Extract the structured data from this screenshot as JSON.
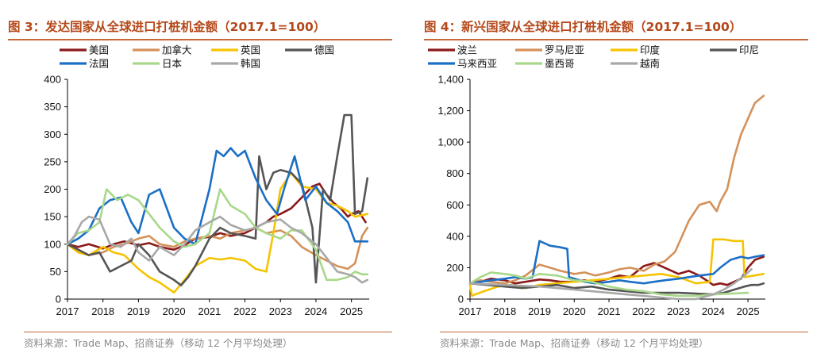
{
  "chart_data": [
    {
      "type": "line",
      "title": "图 3：发达国家从全球进口打桩机金额（2017.1=100）",
      "source": "资料来源：Trade Map、招商证券（移动 12 个月平均处理）",
      "y_ticks": [
        "0",
        "50",
        "100",
        "150",
        "200",
        "250",
        "300",
        "350",
        "400"
      ],
      "x_ticks": [
        "2017",
        "2018",
        "2019",
        "2020",
        "2021",
        "2022",
        "2023",
        "2024",
        "2025"
      ],
      "ylim": [
        0,
        400
      ],
      "xlim": [
        2017,
        2025.5
      ],
      "series": [
        {
          "name": "美国",
          "color": "#8b1a1a",
          "x": [
            2017,
            2017.3,
            2017.6,
            2018,
            2018.3,
            2018.6,
            2019,
            2019.3,
            2019.6,
            2020,
            2020.3,
            2020.6,
            2021,
            2021.3,
            2021.6,
            2022,
            2022.3,
            2022.6,
            2022.8,
            2023,
            2023.3,
            2023.6,
            2023.9,
            2024.1,
            2024.3,
            2024.5,
            2024.7,
            2024.9,
            2025,
            2025.2,
            2025.4
          ],
          "values": [
            100,
            95,
            100,
            92,
            100,
            105,
            98,
            102,
            95,
            90,
            98,
            110,
            113,
            120,
            115,
            120,
            130,
            140,
            150,
            155,
            165,
            185,
            205,
            210,
            190,
            175,
            165,
            150,
            155,
            160,
            140
          ]
        },
        {
          "name": "加拿大",
          "color": "#d4915a",
          "x": [
            2017,
            2017.3,
            2017.6,
            2018,
            2018.3,
            2018.6,
            2019,
            2019.3,
            2019.6,
            2020,
            2020.3,
            2020.6,
            2021,
            2021.3,
            2021.6,
            2022,
            2022.3,
            2022.6,
            2023,
            2023.3,
            2023.6,
            2024,
            2024.3,
            2024.6,
            2024.9,
            2025.1,
            2025.3,
            2025.45
          ],
          "values": [
            100,
            90,
            80,
            85,
            95,
            100,
            110,
            115,
            100,
            95,
            105,
            110,
            115,
            110,
            120,
            125,
            130,
            120,
            125,
            115,
            95,
            80,
            70,
            60,
            55,
            65,
            115,
            130
          ]
        },
        {
          "name": "英国",
          "color": "#f5c400",
          "x": [
            2017,
            2017.3,
            2017.6,
            2018,
            2018.3,
            2018.6,
            2019,
            2019.3,
            2019.6,
            2020,
            2020.3,
            2020.6,
            2021,
            2021.3,
            2021.6,
            2022,
            2022.3,
            2022.6,
            2022.8,
            2023,
            2023.3,
            2023.6,
            2024,
            2024.3,
            2024.6,
            2024.9,
            2025.1,
            2025.45
          ],
          "values": [
            100,
            85,
            80,
            95,
            85,
            80,
            55,
            40,
            30,
            12,
            35,
            60,
            75,
            72,
            75,
            70,
            55,
            50,
            120,
            200,
            230,
            205,
            200,
            175,
            170,
            160,
            150,
            155
          ]
        },
        {
          "name": "德国",
          "color": "#555555",
          "x": [
            2017,
            2017.3,
            2017.6,
            2017.9,
            2018.2,
            2018.5,
            2018.8,
            2019,
            2019.3,
            2019.6,
            2020,
            2020.2,
            2020.4,
            2020.6,
            2021,
            2021.3,
            2021.6,
            2022,
            2022.3,
            2022.4,
            2022.6,
            2022.8,
            2023,
            2023.3,
            2023.6,
            2023.9,
            2024,
            2024.2,
            2024.4,
            2024.6,
            2024.8,
            2025,
            2025.1,
            2025.3,
            2025.45
          ],
          "values": [
            100,
            90,
            80,
            85,
            50,
            60,
            70,
            100,
            80,
            50,
            35,
            25,
            40,
            60,
            110,
            130,
            120,
            115,
            110,
            260,
            200,
            230,
            235,
            230,
            210,
            130,
            30,
            200,
            180,
            260,
            335,
            335,
            155,
            160,
            220
          ]
        },
        {
          "name": "法国",
          "color": "#1b6fc6",
          "x": [
            2017,
            2017.3,
            2017.6,
            2017.9,
            2018.2,
            2018.5,
            2018.8,
            2019,
            2019.3,
            2019.6,
            2020,
            2020.3,
            2020.6,
            2021,
            2021.2,
            2021.4,
            2021.6,
            2021.8,
            2022,
            2022.3,
            2022.6,
            2022.9,
            2023.1,
            2023.4,
            2023.7,
            2024,
            2024.3,
            2024.6,
            2024.9,
            2025.1,
            2025.3,
            2025.45
          ],
          "values": [
            100,
            110,
            125,
            165,
            180,
            185,
            140,
            120,
            190,
            200,
            130,
            110,
            100,
            200,
            270,
            260,
            275,
            260,
            270,
            220,
            180,
            155,
            200,
            260,
            180,
            205,
            175,
            160,
            140,
            105,
            105,
            105
          ]
        },
        {
          "name": "日本",
          "color": "#a8d88a",
          "x": [
            2017,
            2017.3,
            2017.6,
            2017.9,
            2018.1,
            2018.4,
            2018.7,
            2019,
            2019.3,
            2019.6,
            2020,
            2020.3,
            2020.6,
            2021,
            2021.3,
            2021.6,
            2022,
            2022.3,
            2022.6,
            2023,
            2023.3,
            2023.6,
            2024,
            2024.3,
            2024.6,
            2024.9,
            2025.1,
            2025.3,
            2025.45
          ],
          "values": [
            100,
            120,
            125,
            140,
            200,
            180,
            190,
            180,
            155,
            130,
            105,
            95,
            100,
            120,
            200,
            170,
            155,
            130,
            120,
            110,
            125,
            125,
            90,
            35,
            35,
            40,
            50,
            45,
            45
          ]
        },
        {
          "name": "韩国",
          "color": "#a8a8a8",
          "x": [
            2017,
            2017.2,
            2017.4,
            2017.6,
            2017.9,
            2018.2,
            2018.5,
            2018.8,
            2019,
            2019.3,
            2019.6,
            2020,
            2020.3,
            2020.6,
            2021,
            2021.3,
            2021.6,
            2022,
            2022.3,
            2022.6,
            2023,
            2023.3,
            2023.6,
            2024,
            2024.3,
            2024.6,
            2024.9,
            2025.1,
            2025.3,
            2025.45
          ],
          "values": [
            100,
            115,
            140,
            150,
            145,
            100,
            95,
            110,
            85,
            70,
            95,
            80,
            100,
            125,
            140,
            150,
            135,
            125,
            130,
            140,
            145,
            130,
            120,
            100,
            75,
            50,
            45,
            40,
            30,
            35
          ]
        }
      ]
    },
    {
      "type": "line",
      "title": "图 4：新兴国家从全球进口打桩机金额（2017.1=100）",
      "source": "资料来源：Trade Map、招商证券（移动 12 个月平均处理）",
      "y_ticks": [
        "0",
        "200",
        "400",
        "600",
        "800",
        "1,000",
        "1,200",
        "1,400"
      ],
      "x_ticks": [
        "2017",
        "2018",
        "2019",
        "2020",
        "2021",
        "2022",
        "2023",
        "2024",
        "2025"
      ],
      "ylim": [
        0,
        1400
      ],
      "xlim": [
        2017,
        2025.5
      ],
      "series": [
        {
          "name": "波兰",
          "color": "#8b1a1a",
          "x": [
            2017,
            2017.3,
            2017.6,
            2018,
            2018.3,
            2018.6,
            2019,
            2019.3,
            2019.6,
            2020,
            2020.3,
            2020.6,
            2021,
            2021.3,
            2021.6,
            2022,
            2022.3,
            2022.6,
            2023,
            2023.3,
            2023.6,
            2024,
            2024.2,
            2024.4,
            2024.6,
            2024.8,
            2025,
            2025.2,
            2025.45
          ],
          "values": [
            100,
            110,
            130,
            120,
            100,
            110,
            125,
            120,
            110,
            110,
            120,
            110,
            130,
            150,
            140,
            210,
            230,
            200,
            160,
            180,
            150,
            90,
            100,
            90,
            110,
            130,
            200,
            250,
            270
          ]
        },
        {
          "name": "罗马尼亚",
          "color": "#d4915a",
          "x": [
            2017,
            2017.3,
            2017.6,
            2018,
            2018.3,
            2018.6,
            2019,
            2019.3,
            2019.6,
            2020,
            2020.3,
            2020.6,
            2021,
            2021.3,
            2021.6,
            2022,
            2022.3,
            2022.6,
            2022.9,
            2023.1,
            2023.3,
            2023.6,
            2023.9,
            2024.1,
            2024.2,
            2024.4,
            2024.6,
            2024.8,
            2025,
            2025.2,
            2025.45
          ],
          "values": [
            100,
            120,
            110,
            100,
            120,
            150,
            220,
            200,
            180,
            160,
            170,
            150,
            170,
            190,
            200,
            180,
            220,
            240,
            300,
            400,
            500,
            600,
            620,
            560,
            620,
            700,
            900,
            1050,
            1150,
            1250,
            1295
          ]
        },
        {
          "name": "印度",
          "color": "#f5c400",
          "x": [
            2017,
            2017.05,
            2017.15,
            2017.4,
            2017.8,
            2018.2,
            2018.6,
            2019,
            2019.5,
            2020,
            2020.5,
            2021,
            2021.5,
            2022,
            2022.5,
            2023,
            2023.5,
            2023.9,
            2024.0,
            2024.3,
            2024.6,
            2024.85,
            2024.9,
            2025.45
          ],
          "values": [
            100,
            20,
            30,
            50,
            80,
            90,
            70,
            90,
            100,
            110,
            120,
            130,
            140,
            150,
            160,
            140,
            100,
            110,
            380,
            380,
            370,
            370,
            140,
            160
          ]
        },
        {
          "name": "印尼",
          "color": "#555555",
          "x": [
            2017,
            2017.5,
            2018,
            2018.5,
            2019,
            2019.5,
            2020,
            2020.5,
            2021,
            2021.5,
            2022,
            2022.5,
            2023,
            2023.5,
            2024,
            2024.3,
            2024.6,
            2024.9,
            2025.1,
            2025.3,
            2025.45
          ],
          "values": [
            100,
            90,
            80,
            70,
            80,
            90,
            70,
            80,
            60,
            50,
            40,
            40,
            40,
            35,
            30,
            40,
            60,
            80,
            90,
            90,
            100
          ]
        },
        {
          "name": "马来西亚",
          "color": "#1b6fc6",
          "x": [
            2017,
            2017.3,
            2017.6,
            2018,
            2018.3,
            2018.6,
            2018.8,
            2019,
            2019.3,
            2019.6,
            2019.8,
            2019.85,
            2020,
            2020.3,
            2020.6,
            2021,
            2021.3,
            2021.6,
            2022,
            2022.3,
            2022.6,
            2023,
            2023.3,
            2023.6,
            2024,
            2024.2,
            2024.5,
            2024.8,
            2025,
            2025.2,
            2025.45
          ],
          "values": [
            100,
            110,
            120,
            130,
            140,
            130,
            140,
            370,
            340,
            330,
            320,
            140,
            130,
            110,
            100,
            110,
            120,
            110,
            100,
            110,
            120,
            130,
            140,
            150,
            160,
            200,
            250,
            270,
            260,
            270,
            280
          ]
        },
        {
          "name": "墨西哥",
          "color": "#a8d88a",
          "x": [
            2017,
            2017.3,
            2017.6,
            2018,
            2018.3,
            2018.6,
            2019,
            2019.5,
            2020,
            2020.5,
            2021,
            2021.5,
            2022,
            2022.5,
            2023,
            2023.5,
            2024,
            2024.5,
            2025
          ],
          "values": [
            100,
            140,
            170,
            160,
            150,
            130,
            160,
            150,
            120,
            110,
            80,
            60,
            50,
            30,
            20,
            20,
            30,
            35,
            40
          ]
        },
        {
          "name": "越南",
          "color": "#a8a8a8",
          "x": [
            2017,
            2017.5,
            2018,
            2018.5,
            2019,
            2019.5,
            2020,
            2020.5,
            2021,
            2021.5,
            2022,
            2022.5,
            2023,
            2023.5,
            2024,
            2024.3,
            2024.6,
            2024.9,
            2025.1
          ],
          "values": [
            100,
            95,
            90,
            85,
            80,
            70,
            60,
            50,
            40,
            30,
            20,
            10,
            0,
            0,
            30,
            60,
            100,
            150,
            190
          ]
        }
      ]
    }
  ]
}
